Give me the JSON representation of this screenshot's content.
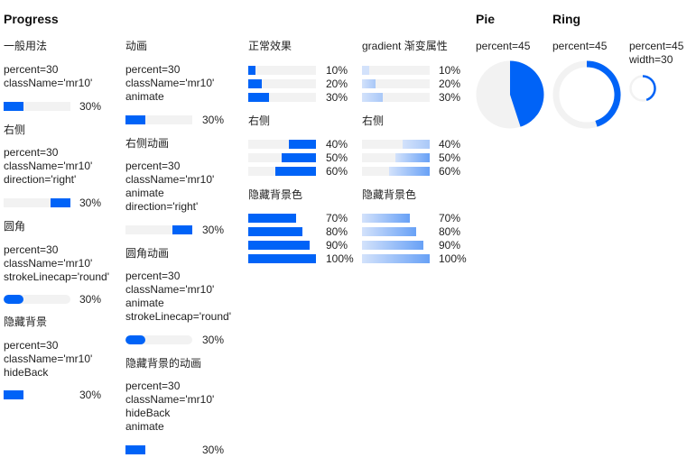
{
  "colors": {
    "fill": "#0063f7",
    "track": "#f2f2f2",
    "gradient_light": "#d3e2fb",
    "gradient_mid": "#a9c8f8",
    "gradient_dark": "#68a1f6"
  },
  "headings": {
    "progress": "Progress",
    "pie": "Pie",
    "ring": "Ring"
  },
  "col1": {
    "normal": {
      "title": "一般用法",
      "props": [
        "percent=30",
        "className='mr10'"
      ],
      "value": 30,
      "pct": "30%"
    },
    "right": {
      "title": "右侧",
      "props": [
        "percent=30",
        "className='mr10'",
        "direction='right'"
      ],
      "value": 30,
      "pct": "30%"
    },
    "round": {
      "title": "圆角",
      "props": [
        "percent=30",
        "className='mr10'",
        "strokeLinecap='round'"
      ],
      "value": 30,
      "pct": "30%"
    },
    "hideback": {
      "title": "隐藏背景",
      "props": [
        "percent=30",
        "className='mr10'",
        "hideBack"
      ],
      "value": 30,
      "pct": "30%"
    }
  },
  "col2": {
    "anim": {
      "title": "动画",
      "props": [
        "percent=30",
        "className='mr10'",
        "animate"
      ],
      "value": 30,
      "pct": "30%"
    },
    "right_anim": {
      "title": "右侧动画",
      "props": [
        "percent=30",
        "className='mr10'",
        "animate",
        "direction='right'"
      ],
      "value": 30,
      "pct": "30%"
    },
    "round_anim": {
      "title": "圆角动画",
      "props": [
        "percent=30",
        "className='mr10'",
        "animate",
        "strokeLinecap='round'"
      ],
      "value": 30,
      "pct": "30%"
    },
    "hideback_anim": {
      "title": "隐藏背景的动画",
      "props": [
        "percent=30",
        "className='mr10'",
        "hideBack",
        "animate"
      ],
      "value": 30,
      "pct": "30%"
    }
  },
  "col3": {
    "normal_title": "正常效果",
    "normal": [
      {
        "value": 10,
        "pct": "10%"
      },
      {
        "value": 20,
        "pct": "20%"
      },
      {
        "value": 30,
        "pct": "30%"
      }
    ],
    "right_title": "右侧",
    "right": [
      {
        "value": 40,
        "pct": "40%"
      },
      {
        "value": 50,
        "pct": "50%"
      },
      {
        "value": 60,
        "pct": "60%"
      }
    ],
    "hide_title": "隐藏背景色",
    "hide": [
      {
        "value": 70,
        "pct": "70%"
      },
      {
        "value": 80,
        "pct": "80%"
      },
      {
        "value": 90,
        "pct": "90%"
      },
      {
        "value": 100,
        "pct": "100%"
      }
    ]
  },
  "col4": {
    "normal_title": "gradient 渐变属性",
    "normal": [
      {
        "value": 10,
        "pct": "10%"
      },
      {
        "value": 20,
        "pct": "20%"
      },
      {
        "value": 30,
        "pct": "30%"
      }
    ],
    "right_title": "右侧",
    "right": [
      {
        "value": 40,
        "pct": "40%"
      },
      {
        "value": 50,
        "pct": "50%"
      },
      {
        "value": 60,
        "pct": "60%"
      }
    ],
    "hide_title": "隐藏背景色",
    "hide": [
      {
        "value": 70,
        "pct": "70%"
      },
      {
        "value": 80,
        "pct": "80%"
      },
      {
        "value": 90,
        "pct": "90%"
      },
      {
        "value": 100,
        "pct": "100%"
      }
    ]
  },
  "pie": {
    "label": "percent=45",
    "value": 45
  },
  "ring": {
    "label": "percent=45",
    "value": 45
  },
  "ring_small": {
    "labels": [
      "percent=45",
      "width=30"
    ],
    "value": 45
  }
}
